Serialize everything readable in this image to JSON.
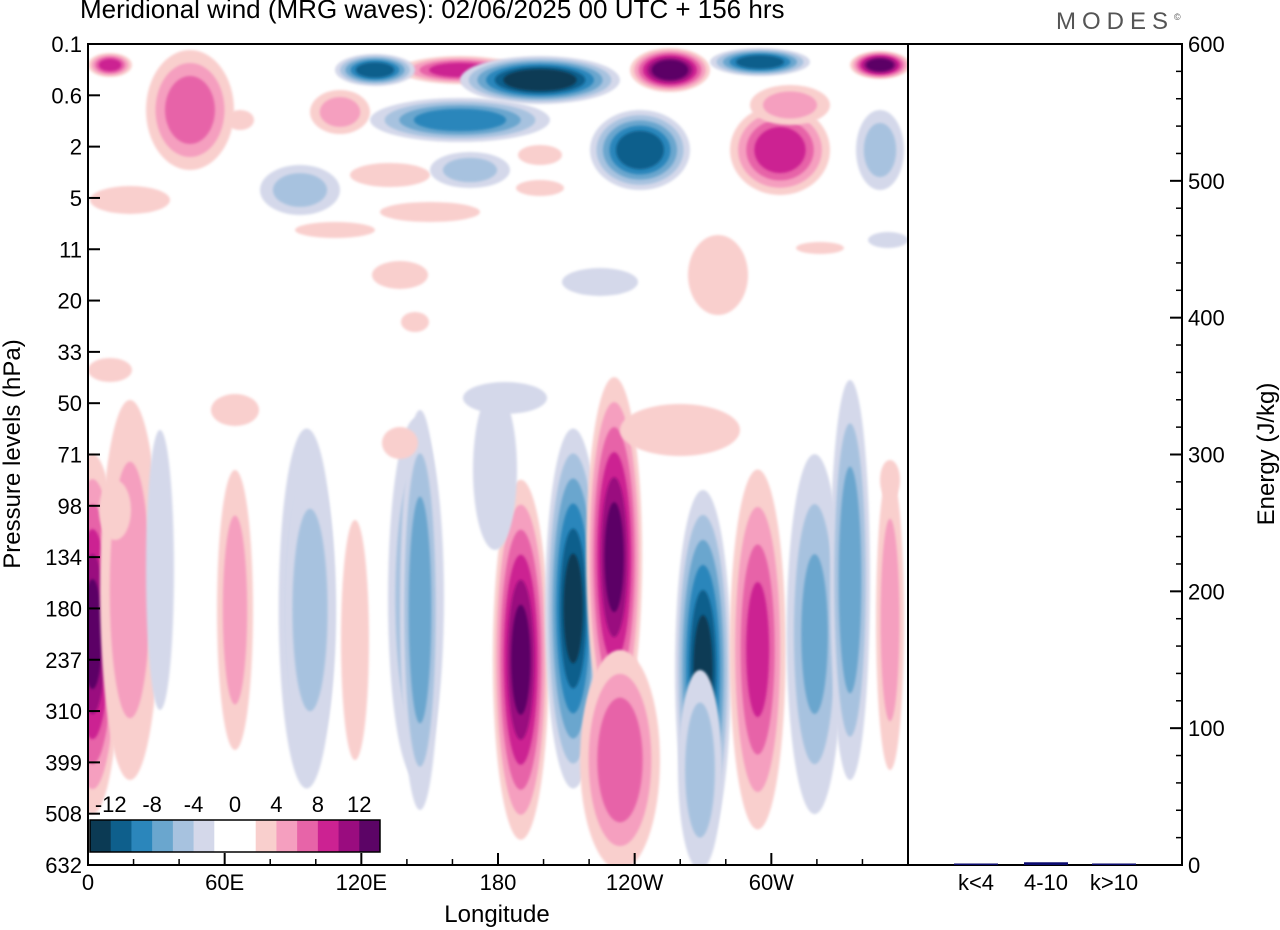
{
  "title": "Meridional wind (MRG waves):  02/06/2025  00 UTC  + 156 hrs",
  "logo": "MODES",
  "logo_mark": "©",
  "chart_data": [
    {
      "type": "heatmap",
      "title": "Meridional wind (MRG waves):  02/06/2025  00 UTC  + 156 hrs",
      "xlabel": "Longitude",
      "ylabel": "Pressure levels (hPa)",
      "x_ticks": [
        "0",
        "60E",
        "120E",
        "180",
        "120W",
        "60W"
      ],
      "x_tick_degrees": [
        0,
        60,
        120,
        180,
        240,
        300
      ],
      "xlim": [
        0,
        360
      ],
      "y_ticks": [
        "0.1",
        "0.6",
        "2",
        "5",
        "11",
        "20",
        "33",
        "50",
        "71",
        "98",
        "134",
        "180",
        "237",
        "310",
        "399",
        "508",
        "632"
      ],
      "y_scale": "model levels (top 0.1 hPa, bottom 632 hPa)",
      "colorbar": {
        "labels": [
          "-12",
          "-8",
          "-4",
          "0",
          "4",
          "8",
          "12"
        ],
        "levels": [
          -14,
          -12,
          -10,
          -8,
          -6,
          -4,
          -2,
          0,
          2,
          4,
          6,
          8,
          10,
          12,
          14
        ],
        "colors": [
          "#0b3a54",
          "#0e5f8c",
          "#2b86bb",
          "#6aa6ce",
          "#a7c2df",
          "#d4d8ea",
          "#ffffff",
          "#ffffff",
          "#f9cfcd",
          "#f59fbf",
          "#e764a8",
          "#cc2292",
          "#9a0c7f",
          "#5c0466"
        ],
        "placement": "bottom-left inside plot"
      },
      "features": [
        {
          "lon": 2,
          "level": 11.5,
          "value": 12,
          "sign": "positive"
        },
        {
          "lon": 190,
          "level": 12,
          "value": 11,
          "sign": "positive"
        },
        {
          "lon": 213,
          "level": 11,
          "value": -11,
          "sign": "negative"
        },
        {
          "lon": 231,
          "level": 10,
          "value": 12,
          "sign": "positive"
        },
        {
          "lon": 270,
          "level": 12.2,
          "value": -13,
          "sign": "negative"
        },
        {
          "lon": 294,
          "level": 11.8,
          "value": 7,
          "sign": "positive"
        },
        {
          "lon": 319,
          "level": 11.5,
          "value": -6,
          "sign": "negative"
        },
        {
          "lon": 96,
          "level": 11,
          "value": -5,
          "sign": "negative"
        },
        {
          "lon": 144,
          "level": 10.8,
          "value": -6,
          "sign": "negative"
        }
      ]
    },
    {
      "type": "bar",
      "ylabel": "Energy (J/kg)",
      "ylim": [
        0,
        600
      ],
      "y_ticks": [
        0,
        100,
        200,
        300,
        400,
        500,
        600
      ],
      "categories": [
        "k<4",
        "4-10",
        "k>10"
      ],
      "values": [
        0.5,
        2,
        0.5
      ],
      "bar_color": "#0a0a6e"
    }
  ]
}
